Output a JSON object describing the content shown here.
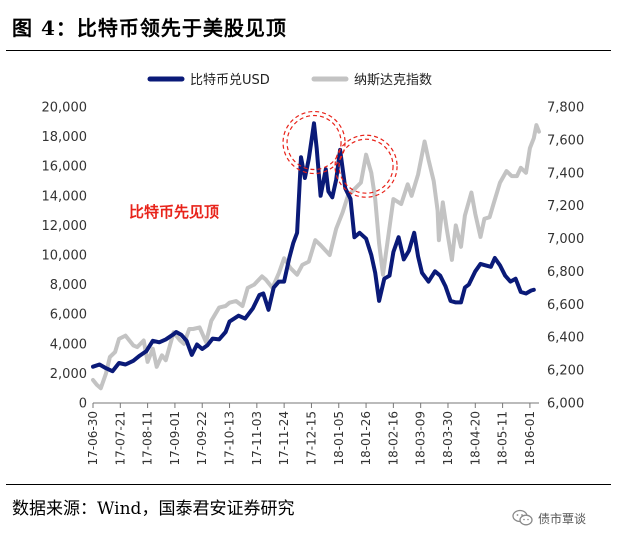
{
  "header": {
    "title": "图  4：比特币领先于美股见顶"
  },
  "source": {
    "text": "数据来源：Wind，国泰君安证券研究"
  },
  "watermark": {
    "text": "债市覃谈",
    "icon": "wechat-icon"
  },
  "chart_data": {
    "type": "line",
    "series": [
      {
        "name": "比特币兑USD",
        "axis": "left",
        "color": "#0a1a78",
        "points": [
          [
            "2017-06-30",
            2450
          ],
          [
            "2017-07-05",
            2600
          ],
          [
            "2017-07-10",
            2350
          ],
          [
            "2017-07-15",
            2150
          ],
          [
            "2017-07-20",
            2700
          ],
          [
            "2017-07-25",
            2600
          ],
          [
            "2017-07-31",
            2850
          ],
          [
            "2017-08-05",
            3200
          ],
          [
            "2017-08-10",
            3500
          ],
          [
            "2017-08-15",
            4200
          ],
          [
            "2017-08-20",
            4100
          ],
          [
            "2017-08-25",
            4300
          ],
          [
            "2017-08-31",
            4650
          ],
          [
            "2017-09-02",
            4800
          ],
          [
            "2017-09-06",
            4600
          ],
          [
            "2017-09-10",
            4200
          ],
          [
            "2017-09-14",
            3250
          ],
          [
            "2017-09-18",
            3950
          ],
          [
            "2017-09-22",
            3650
          ],
          [
            "2017-09-26",
            3900
          ],
          [
            "2017-09-30",
            4350
          ],
          [
            "2017-10-05",
            4300
          ],
          [
            "2017-10-10",
            4800
          ],
          [
            "2017-10-13",
            5500
          ],
          [
            "2017-10-20",
            5900
          ],
          [
            "2017-10-25",
            5700
          ],
          [
            "2017-10-31",
            6400
          ],
          [
            "2017-11-05",
            7300
          ],
          [
            "2017-11-08",
            7400
          ],
          [
            "2017-11-12",
            6300
          ],
          [
            "2017-11-16",
            7800
          ],
          [
            "2017-11-20",
            8200
          ],
          [
            "2017-11-24",
            8200
          ],
          [
            "2017-11-28",
            9800
          ],
          [
            "2017-12-01",
            10800
          ],
          [
            "2017-12-04",
            11500
          ],
          [
            "2017-12-07",
            16600
          ],
          [
            "2017-12-10",
            15200
          ],
          [
            "2017-12-13",
            16500
          ],
          [
            "2017-12-17",
            18900
          ],
          [
            "2017-12-19",
            17200
          ],
          [
            "2017-12-22",
            14000
          ],
          [
            "2017-12-26",
            15800
          ],
          [
            "2017-12-28",
            14300
          ],
          [
            "2017-12-31",
            13900
          ],
          [
            "2018-01-03",
            15100
          ],
          [
            "2018-01-06",
            17100
          ],
          [
            "2018-01-10",
            14500
          ],
          [
            "2018-01-14",
            13800
          ],
          [
            "2018-01-17",
            11200
          ],
          [
            "2018-01-21",
            11500
          ],
          [
            "2018-01-26",
            11100
          ],
          [
            "2018-01-30",
            10000
          ],
          [
            "2018-02-02",
            8800
          ],
          [
            "2018-02-05",
            6900
          ],
          [
            "2018-02-09",
            8400
          ],
          [
            "2018-02-13",
            8600
          ],
          [
            "2018-02-16",
            10200
          ],
          [
            "2018-02-20",
            11200
          ],
          [
            "2018-02-24",
            9700
          ],
          [
            "2018-02-28",
            10300
          ],
          [
            "2018-03-04",
            11500
          ],
          [
            "2018-03-07",
            9900
          ],
          [
            "2018-03-10",
            8800
          ],
          [
            "2018-03-15",
            8200
          ],
          [
            "2018-03-20",
            8900
          ],
          [
            "2018-03-24",
            8600
          ],
          [
            "2018-03-28",
            7900
          ],
          [
            "2018-04-01",
            6900
          ],
          [
            "2018-04-05",
            6800
          ],
          [
            "2018-04-09",
            6800
          ],
          [
            "2018-04-12",
            7800
          ],
          [
            "2018-04-15",
            8000
          ],
          [
            "2018-04-20",
            8900
          ],
          [
            "2018-04-24",
            9400
          ],
          [
            "2018-04-28",
            9300
          ],
          [
            "2018-05-02",
            9200
          ],
          [
            "2018-05-05",
            9800
          ],
          [
            "2018-05-09",
            9300
          ],
          [
            "2018-05-13",
            8600
          ],
          [
            "2018-05-17",
            8200
          ],
          [
            "2018-05-21",
            8400
          ],
          [
            "2018-05-25",
            7500
          ],
          [
            "2018-05-29",
            7400
          ],
          [
            "2018-06-02",
            7600
          ],
          [
            "2018-06-04",
            7650
          ]
        ]
      },
      {
        "name": "纳斯达克指数",
        "axis": "right",
        "color": "#c3c3c3",
        "points": [
          [
            "2017-06-30",
            6140
          ],
          [
            "2017-07-03",
            6110
          ],
          [
            "2017-07-06",
            6090
          ],
          [
            "2017-07-10",
            6180
          ],
          [
            "2017-07-13",
            6280
          ],
          [
            "2017-07-17",
            6310
          ],
          [
            "2017-07-20",
            6390
          ],
          [
            "2017-07-25",
            6410
          ],
          [
            "2017-07-31",
            6350
          ],
          [
            "2017-08-03",
            6340
          ],
          [
            "2017-08-08",
            6380
          ],
          [
            "2017-08-11",
            6250
          ],
          [
            "2017-08-15",
            6330
          ],
          [
            "2017-08-18",
            6220
          ],
          [
            "2017-08-22",
            6290
          ],
          [
            "2017-08-25",
            6260
          ],
          [
            "2017-08-31",
            6430
          ],
          [
            "2017-09-05",
            6380
          ],
          [
            "2017-09-08",
            6360
          ],
          [
            "2017-09-12",
            6450
          ],
          [
            "2017-09-15",
            6450
          ],
          [
            "2017-09-20",
            6460
          ],
          [
            "2017-09-25",
            6370
          ],
          [
            "2017-09-29",
            6500
          ],
          [
            "2017-10-05",
            6580
          ],
          [
            "2017-10-10",
            6590
          ],
          [
            "2017-10-13",
            6610
          ],
          [
            "2017-10-18",
            6620
          ],
          [
            "2017-10-23",
            6590
          ],
          [
            "2017-10-27",
            6700
          ],
          [
            "2017-11-01",
            6720
          ],
          [
            "2017-11-07",
            6770
          ],
          [
            "2017-11-10",
            6750
          ],
          [
            "2017-11-15",
            6700
          ],
          [
            "2017-11-20",
            6790
          ],
          [
            "2017-11-24",
            6880
          ],
          [
            "2017-11-29",
            6820
          ],
          [
            "2017-12-04",
            6780
          ],
          [
            "2017-12-08",
            6840
          ],
          [
            "2017-12-13",
            6860
          ],
          [
            "2017-12-18",
            6990
          ],
          [
            "2017-12-22",
            6960
          ],
          [
            "2017-12-29",
            6900
          ],
          [
            "2018-01-03",
            7060
          ],
          [
            "2018-01-08",
            7160
          ],
          [
            "2018-01-12",
            7260
          ],
          [
            "2018-01-17",
            7300
          ],
          [
            "2018-01-22",
            7340
          ],
          [
            "2018-01-26",
            7510
          ],
          [
            "2018-01-30",
            7400
          ],
          [
            "2018-02-02",
            7240
          ],
          [
            "2018-02-05",
            6970
          ],
          [
            "2018-02-08",
            6780
          ],
          [
            "2018-02-12",
            7010
          ],
          [
            "2018-02-16",
            7240
          ],
          [
            "2018-02-22",
            7210
          ],
          [
            "2018-02-27",
            7330
          ],
          [
            "2018-03-02",
            7260
          ],
          [
            "2018-03-07",
            7390
          ],
          [
            "2018-03-12",
            7590
          ],
          [
            "2018-03-15",
            7480
          ],
          [
            "2018-03-19",
            7350
          ],
          [
            "2018-03-22",
            7170
          ],
          [
            "2018-03-23",
            6990
          ],
          [
            "2018-03-26",
            7220
          ],
          [
            "2018-03-29",
            7060
          ],
          [
            "2018-04-02",
            6870
          ],
          [
            "2018-04-05",
            7080
          ],
          [
            "2018-04-09",
            6950
          ],
          [
            "2018-04-12",
            7140
          ],
          [
            "2018-04-17",
            7280
          ],
          [
            "2018-04-20",
            7150
          ],
          [
            "2018-04-24",
            7010
          ],
          [
            "2018-04-27",
            7120
          ],
          [
            "2018-05-01",
            7130
          ],
          [
            "2018-05-04",
            7210
          ],
          [
            "2018-05-09",
            7340
          ],
          [
            "2018-05-14",
            7410
          ],
          [
            "2018-05-18",
            7380
          ],
          [
            "2018-05-22",
            7380
          ],
          [
            "2018-05-25",
            7430
          ],
          [
            "2018-05-29",
            7400
          ],
          [
            "2018-06-01",
            7550
          ],
          [
            "2018-06-04",
            7610
          ],
          [
            "2018-06-06",
            7690
          ],
          [
            "2018-06-08",
            7650
          ]
        ]
      }
    ],
    "left_axis": {
      "min": 0,
      "max": 20000,
      "step": 2000,
      "tick_labels": [
        "0",
        "2,000",
        "4,000",
        "6,000",
        "8,000",
        "10,000",
        "12,000",
        "14,000",
        "16,000",
        "18,000",
        "20,000"
      ]
    },
    "right_axis": {
      "min": 6000,
      "max": 7800,
      "step": 200,
      "tick_labels": [
        "6,000",
        "6,200",
        "6,400",
        "6,600",
        "6,800",
        "7,000",
        "7,200",
        "7,400",
        "7,600",
        "7,800"
      ]
    },
    "x_tick_labels": [
      "17-06-30",
      "17-07-21",
      "17-08-11",
      "17-09-01",
      "17-09-22",
      "17-10-13",
      "17-11-03",
      "17-11-24",
      "17-12-15",
      "18-01-05",
      "18-01-26",
      "18-02-16",
      "18-03-09",
      "18-03-30",
      "18-04-20",
      "18-05-11",
      "18-06-01"
    ],
    "x_tick_dates": [
      "2017-06-30",
      "2017-07-21",
      "2017-08-11",
      "2017-09-01",
      "2017-09-22",
      "2017-10-13",
      "2017-11-03",
      "2017-11-24",
      "2017-12-15",
      "2018-01-05",
      "2018-01-26",
      "2018-02-16",
      "2018-03-09",
      "2018-03-30",
      "2018-04-20",
      "2018-05-11",
      "2018-06-01"
    ],
    "x_range": [
      "2017-06-30",
      "2018-06-08"
    ],
    "annotation": {
      "text": "比特币先见顶",
      "color": "#e8231a"
    },
    "highlight_circles": [
      {
        "target": "比特币兑USD peak",
        "x": "2017-12-17",
        "series": "比特币兑USD",
        "y": 17600
      },
      {
        "target": "纳斯达克指数 peak",
        "x": "2018-01-26",
        "series": "纳斯达克指数",
        "y": 7440
      }
    ],
    "grid": false,
    "legend_position": "top-center"
  }
}
